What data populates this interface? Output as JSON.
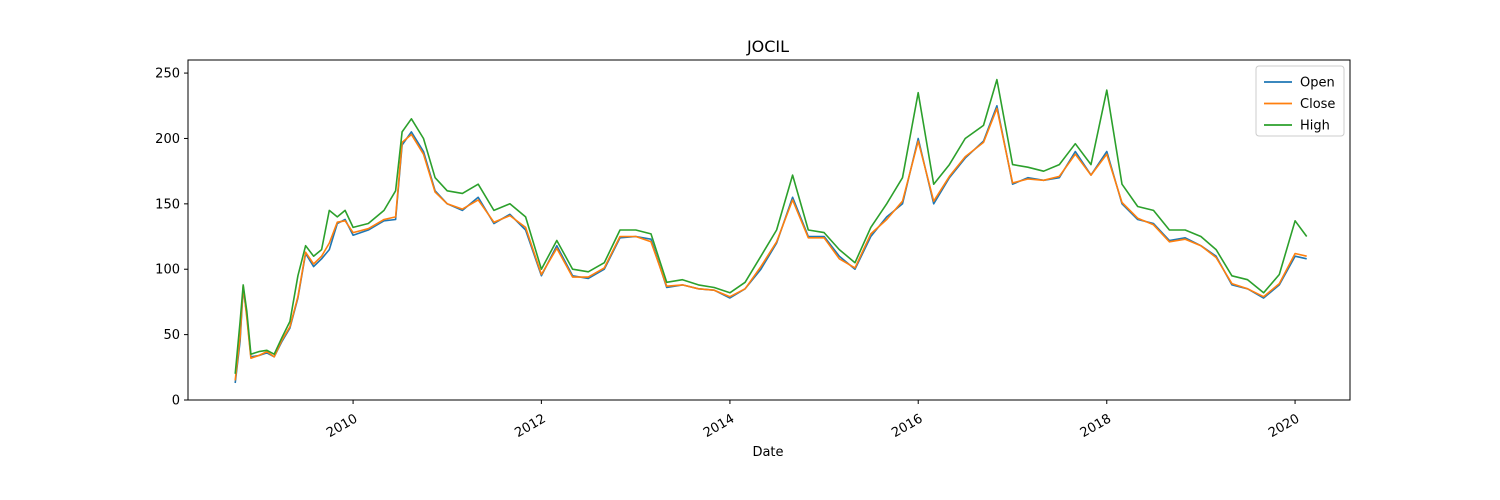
{
  "chart_data": {
    "type": "line",
    "title": "JOCIL",
    "xlabel": "Date",
    "ylabel": "",
    "xlim": [
      "2008-04-01",
      "2020-08-01"
    ],
    "ylim": [
      0,
      260
    ],
    "grid": false,
    "legend_position": "top-right",
    "x_ticks": [
      "2010-01-01",
      "2012-01-01",
      "2014-01-01",
      "2016-01-01",
      "2018-01-01",
      "2020-01-01"
    ],
    "x_tick_labels": [
      "2010",
      "2012",
      "2014",
      "2016",
      "2018",
      "2020"
    ],
    "y_ticks": [
      0,
      50,
      100,
      150,
      200,
      250
    ],
    "y_tick_labels": [
      "0",
      "50",
      "100",
      "150",
      "200",
      "250"
    ],
    "x": [
      "2008-10-01",
      "2008-10-20",
      "2008-11-01",
      "2008-11-15",
      "2008-12-01",
      "2009-01-01",
      "2009-02-01",
      "2009-03-01",
      "2009-04-01",
      "2009-05-01",
      "2009-06-01",
      "2009-07-01",
      "2009-08-01",
      "2009-09-01",
      "2009-10-01",
      "2009-11-01",
      "2009-12-01",
      "2010-01-01",
      "2010-03-01",
      "2010-05-01",
      "2010-06-15",
      "2010-07-10",
      "2010-08-15",
      "2010-10-01",
      "2010-11-15",
      "2011-01-01",
      "2011-03-01",
      "2011-05-01",
      "2011-07-01",
      "2011-09-01",
      "2011-11-01",
      "2012-01-01",
      "2012-03-01",
      "2012-05-01",
      "2012-07-01",
      "2012-09-01",
      "2012-11-01",
      "2013-01-01",
      "2013-03-01",
      "2013-05-01",
      "2013-07-01",
      "2013-09-01",
      "2013-11-01",
      "2014-01-01",
      "2014-03-01",
      "2014-05-01",
      "2014-07-01",
      "2014-09-01",
      "2014-11-01",
      "2015-01-01",
      "2015-03-01",
      "2015-05-01",
      "2015-07-01",
      "2015-09-01",
      "2015-11-01",
      "2016-01-01",
      "2016-03-01",
      "2016-05-01",
      "2016-07-01",
      "2016-09-10",
      "2016-11-01",
      "2017-01-01",
      "2017-03-01",
      "2017-05-01",
      "2017-07-01",
      "2017-09-01",
      "2017-11-01",
      "2018-01-01",
      "2018-03-01",
      "2018-05-01",
      "2018-07-01",
      "2018-09-01",
      "2018-11-01",
      "2019-01-01",
      "2019-03-01",
      "2019-05-01",
      "2019-07-01",
      "2019-09-01",
      "2019-11-01",
      "2020-01-01",
      "2020-02-15"
    ],
    "series": [
      {
        "name": "Open",
        "color": "#1f77b4",
        "values": [
          13,
          45,
          86,
          65,
          33,
          34,
          36,
          33,
          45,
          55,
          78,
          112,
          102,
          108,
          115,
          135,
          138,
          126,
          130,
          137,
          138,
          195,
          205,
          190,
          160,
          150,
          145,
          155,
          135,
          142,
          130,
          95,
          118,
          95,
          93,
          100,
          124,
          125,
          123,
          86,
          88,
          85,
          84,
          78,
          85,
          100,
          120,
          155,
          125,
          125,
          110,
          100,
          125,
          140,
          150,
          200,
          150,
          170,
          185,
          198,
          225,
          165,
          170,
          168,
          170,
          190,
          172,
          190,
          150,
          138,
          135,
          122,
          124,
          118,
          110,
          88,
          85,
          78,
          88,
          110,
          108
        ]
      },
      {
        "name": "Close",
        "color": "#ff7f0e",
        "values": [
          15,
          48,
          87,
          63,
          32,
          34,
          37,
          33,
          46,
          56,
          79,
          113,
          104,
          110,
          120,
          136,
          137,
          128,
          131,
          138,
          140,
          197,
          203,
          188,
          159,
          150,
          146,
          153,
          136,
          141,
          132,
          96,
          116,
          94,
          94,
          101,
          125,
          125,
          121,
          87,
          88,
          85,
          84,
          79,
          85,
          102,
          121,
          153,
          124,
          124,
          108,
          101,
          127,
          138,
          152,
          198,
          152,
          171,
          186,
          197,
          223,
          166,
          169,
          168,
          171,
          188,
          172,
          188,
          151,
          139,
          134,
          121,
          123,
          118,
          109,
          89,
          85,
          79,
          89,
          112,
          110
        ]
      },
      {
        "name": "High",
        "color": "#2ca02c",
        "values": [
          20,
          60,
          88,
          68,
          35,
          37,
          38,
          35,
          48,
          60,
          95,
          118,
          110,
          115,
          145,
          140,
          145,
          132,
          135,
          145,
          160,
          205,
          215,
          200,
          170,
          160,
          158,
          165,
          145,
          150,
          140,
          100,
          122,
          100,
          98,
          105,
          130,
          130,
          127,
          90,
          92,
          88,
          86,
          82,
          90,
          110,
          130,
          172,
          130,
          128,
          115,
          105,
          132,
          150,
          170,
          235,
          165,
          180,
          200,
          210,
          245,
          180,
          178,
          175,
          180,
          196,
          180,
          237,
          165,
          148,
          145,
          130,
          130,
          125,
          115,
          95,
          92,
          82,
          96,
          137,
          125
        ]
      }
    ]
  }
}
